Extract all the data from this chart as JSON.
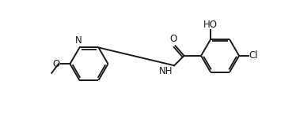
{
  "bg_color": "#ffffff",
  "line_color": "#1a1a1a",
  "line_width": 1.4,
  "dbo": 0.055,
  "fs": 8.5,
  "fs_small": 8.5,
  "rxc": 7.2,
  "ryc": 0.35,
  "lxc": 3.2,
  "lyc": 0.1,
  "ring_size": 0.58,
  "xlim": [
    0.5,
    9.5
  ],
  "ylim": [
    -0.85,
    1.35
  ]
}
